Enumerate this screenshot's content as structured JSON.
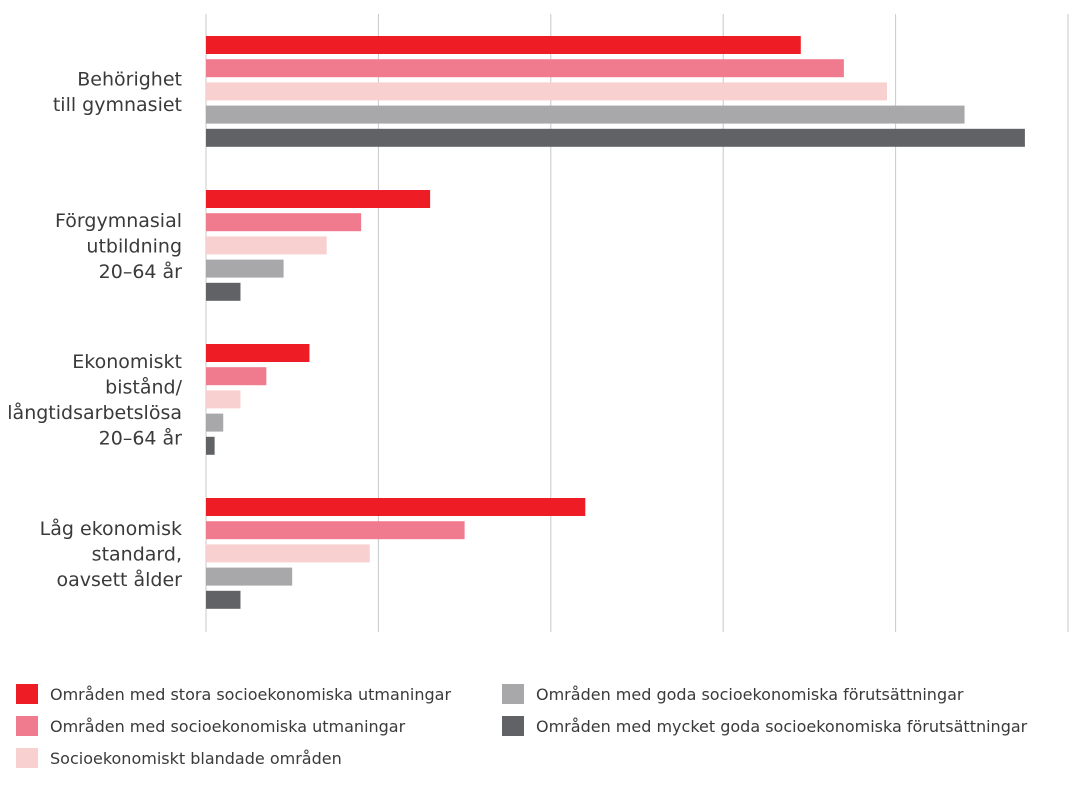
{
  "chart_data": {
    "type": "bar",
    "orientation": "horizontal",
    "categories": [
      [
        "Behörighet",
        "till gymnasiet"
      ],
      [
        "Förgymnasial",
        "utbildning",
        "20–64 år"
      ],
      [
        "Ekonomiskt",
        "bistånd/",
        "långtidsarbetslösa",
        "20–64 år"
      ],
      [
        "Låg ekonomisk",
        "standard,",
        "oavsett ålder"
      ]
    ],
    "series": [
      {
        "name": "Områden med stora socioekonomiska utmaningar",
        "color": "#ee1c25",
        "values": [
          69,
          26,
          12,
          44
        ]
      },
      {
        "name": "Områden med socioekonomiska utmaningar",
        "color": "#f07b8e",
        "values": [
          74,
          18,
          7,
          30
        ]
      },
      {
        "name": "Socioekonomiskt blandade områden",
        "color": "#f9d0d0",
        "values": [
          79,
          14,
          4,
          19
        ]
      },
      {
        "name": "Områden med goda socioekonomiska förutsättningar",
        "color": "#a8a8aa",
        "values": [
          88,
          9,
          2,
          10
        ]
      },
      {
        "name": "Områden med mycket goda socioekonomiska förutsättningar",
        "color": "#616265",
        "values": [
          95,
          4,
          1,
          4
        ]
      }
    ],
    "xlim": [
      0,
      100
    ],
    "xticks": [
      "0",
      "20",
      "40",
      "60",
      "80",
      "100"
    ],
    "grid": true,
    "legend_position": "bottom"
  }
}
